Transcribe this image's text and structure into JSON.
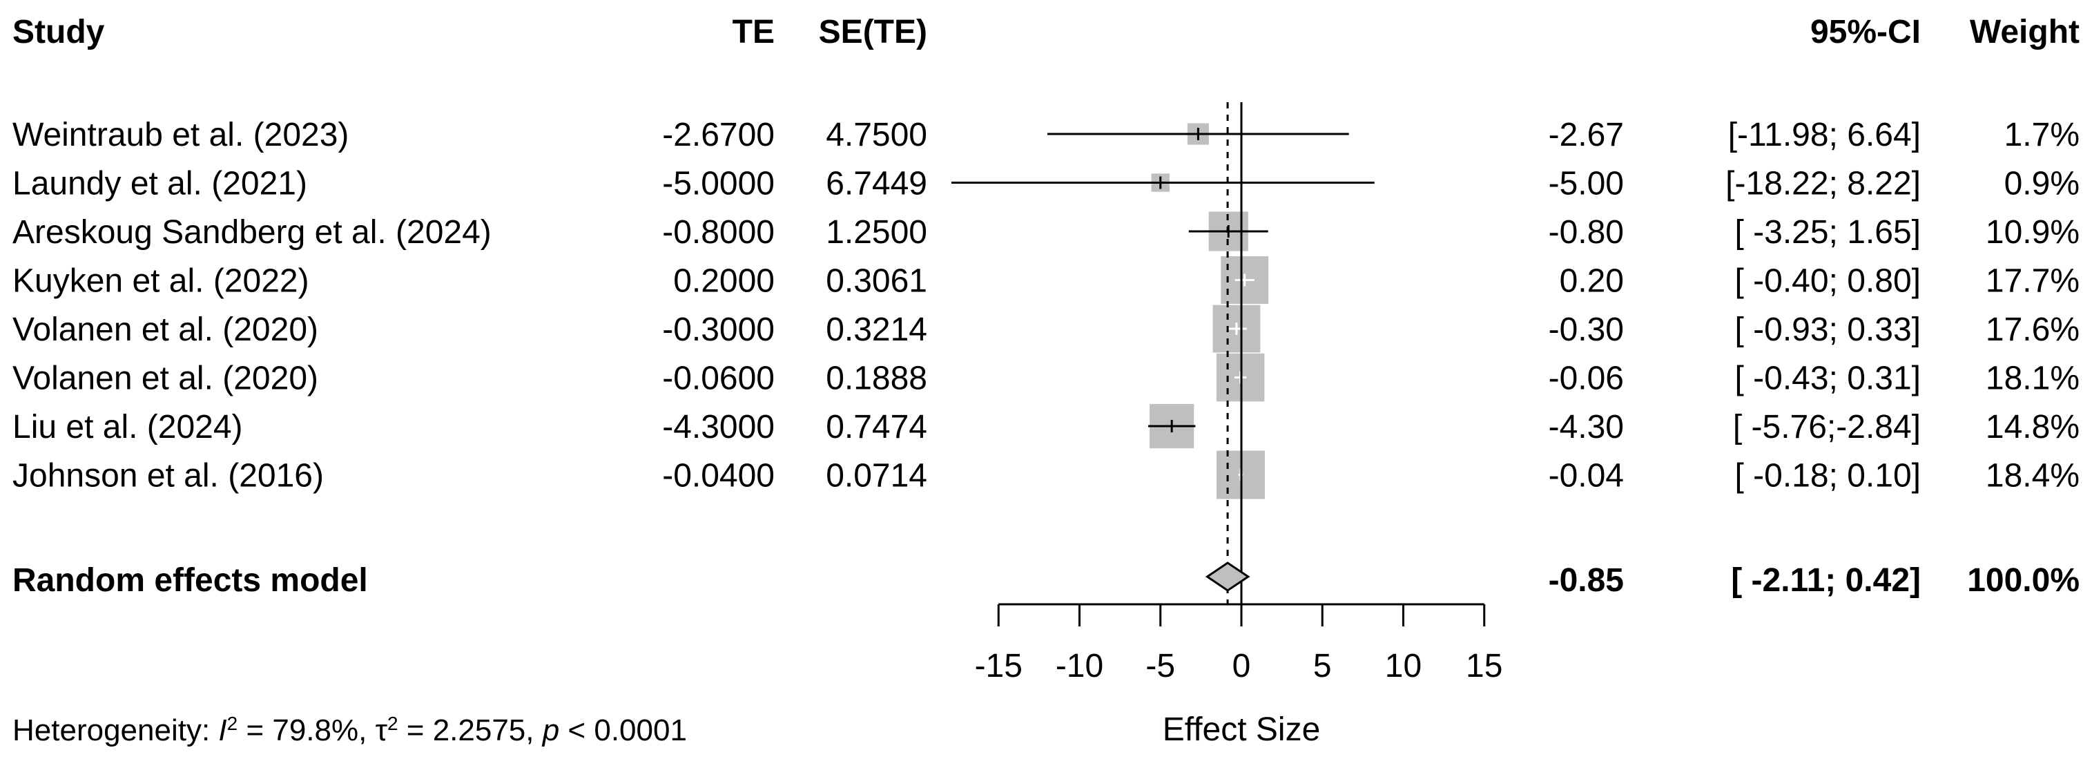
{
  "headers": {
    "study": "Study",
    "te": "TE",
    "se": "SE(TE)",
    "ci": "95%-CI",
    "weight": "Weight"
  },
  "chart_data": {
    "type": "forest",
    "xlabel": "Effect Size",
    "xlim": [
      -15,
      15
    ],
    "ticks": [
      -15,
      -10,
      -5,
      0,
      5,
      10,
      15
    ],
    "tick_labels": [
      "-15",
      "-10",
      "-5",
      "0",
      "5",
      "10",
      "15"
    ],
    "null_line": 0,
    "studies": [
      {
        "label": "Weintraub et al. (2023)",
        "te": "-2.6700",
        "se": "4.7500",
        "est": -2.67,
        "lower": -11.98,
        "upper": 6.64,
        "est_text": "-2.67",
        "ci_text": "[-11.98; 6.64]",
        "weight": 1.7,
        "weight_text": "1.7%"
      },
      {
        "label": "Laundy et al. (2021)",
        "te": "-5.0000",
        "se": "6.7449",
        "est": -5.0,
        "lower": -18.22,
        "upper": 8.22,
        "est_text": "-5.00",
        "ci_text": "[-18.22; 8.22]",
        "weight": 0.9,
        "weight_text": "0.9%"
      },
      {
        "label": "Areskoug  Sandberg et al. (2024)",
        "te": "-0.8000",
        "se": "1.2500",
        "est": -0.8,
        "lower": -3.25,
        "upper": 1.65,
        "est_text": "-0.80",
        "ci_text": "[ -3.25; 1.65]",
        "weight": 10.9,
        "weight_text": "10.9%"
      },
      {
        "label": "Kuyken et al. (2022)",
        "te": "0.2000",
        "se": "0.3061",
        "est": 0.2,
        "lower": -0.4,
        "upper": 0.8,
        "est_text": "0.20",
        "ci_text": "[ -0.40; 0.80]",
        "weight": 17.7,
        "weight_text": "17.7%"
      },
      {
        "label": "Volanen  et al. (2020)",
        "te": "-0.3000",
        "se": "0.3214",
        "est": -0.3,
        "lower": -0.93,
        "upper": 0.33,
        "est_text": "-0.30",
        "ci_text": "[ -0.93; 0.33]",
        "weight": 17.6,
        "weight_text": "17.6%"
      },
      {
        "label": "Volanen  et al. (2020)",
        "te": "-0.0600",
        "se": "0.1888",
        "est": -0.06,
        "lower": -0.43,
        "upper": 0.31,
        "est_text": "-0.06",
        "ci_text": "[ -0.43; 0.31]",
        "weight": 18.1,
        "weight_text": "18.1%"
      },
      {
        "label": "Liu  et al. (2024)",
        "te": "-4.3000",
        "se": "0.7474",
        "est": -4.3,
        "lower": -5.76,
        "upper": -2.84,
        "est_text": "-4.30",
        "ci_text": "[ -5.76;-2.84]",
        "weight": 14.8,
        "weight_text": "14.8%"
      },
      {
        "label": "Johnson et al. (2016)",
        "te": "-0.0400",
        "se": "0.0714",
        "est": -0.04,
        "lower": -0.18,
        "upper": 0.1,
        "est_text": "-0.04",
        "ci_text": "[ -0.18; 0.10]",
        "weight": 18.4,
        "weight_text": "18.4%"
      }
    ],
    "summary": {
      "label": "Random effects model",
      "est": -0.85,
      "lower": -2.11,
      "upper": 0.42,
      "est_text": "-0.85",
      "ci_text": "[ -2.11; 0.42]",
      "weight_text": "100.0%"
    },
    "heterogeneity": {
      "prefix": "Heterogeneity: ",
      "i2_symbol": "I",
      "i2_value": " = 79.8%, ",
      "tau_symbol": "τ",
      "tau_value": " = 2.2575, ",
      "p_symbol": "p",
      "p_value": " < 0.0001",
      "sup": "2"
    }
  }
}
